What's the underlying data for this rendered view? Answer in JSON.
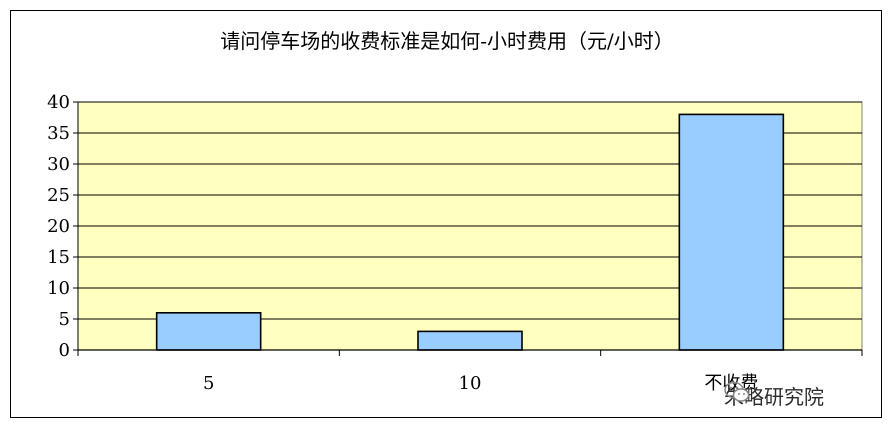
{
  "chart_data": {
    "type": "bar",
    "title": "请问停车场的收费标准是如何-小时费用（元/小时）",
    "xlabel": "",
    "ylabel": "",
    "categories": [
      "5",
      "10",
      "不收费"
    ],
    "values": [
      6,
      3,
      38
    ],
    "ylim": [
      0,
      40
    ],
    "yticks": [
      "0",
      "5",
      "10",
      "15",
      "20",
      "25",
      "30",
      "35",
      "40"
    ],
    "grid": true,
    "legend": "none",
    "colors": {
      "plot_background": "#FFFFC0",
      "bar_fill": "#99CCFF",
      "bar_stroke": "#000000",
      "gridline": "#000000"
    }
  },
  "watermark": {
    "text": "朱略研究院",
    "icon": "wechat-icon"
  }
}
